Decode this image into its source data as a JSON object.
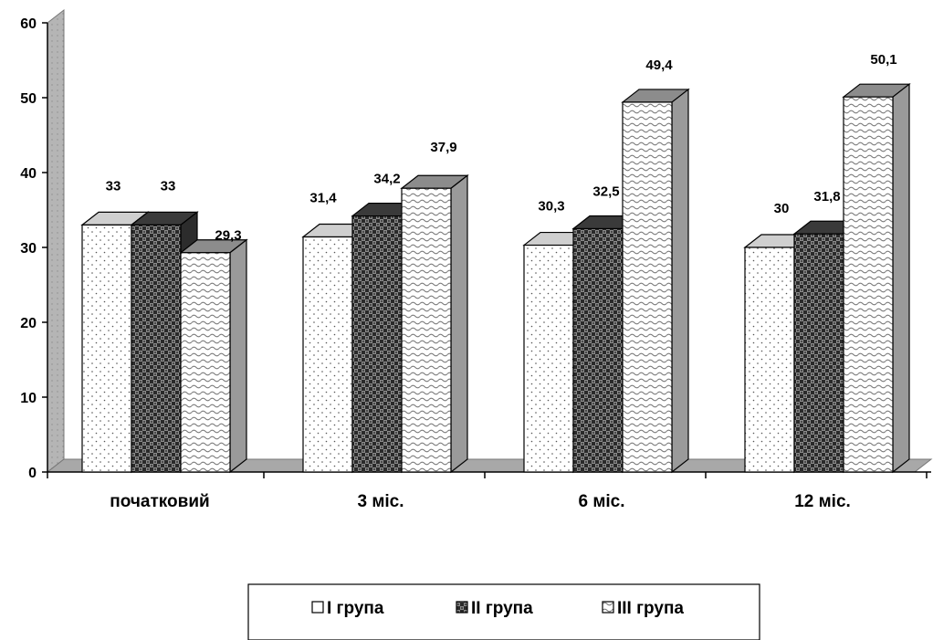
{
  "chart_data": {
    "type": "bar",
    "title": "",
    "xlabel": "",
    "ylabel": "",
    "ylim": [
      0,
      60
    ],
    "yticks": [
      "0",
      "10",
      "20",
      "30",
      "40",
      "50",
      "60"
    ],
    "categories": [
      "початковий",
      "3 міс.",
      "6 міс.",
      "12 міс."
    ],
    "series": [
      {
        "name": "I група",
        "values": [
          33,
          31.4,
          30.3,
          30
        ],
        "labels": [
          "33",
          "31,4",
          "30,3",
          "30"
        ],
        "pattern": "dots"
      },
      {
        "name": "II група",
        "values": [
          33,
          34.2,
          32.5,
          31.8
        ],
        "labels": [
          "33",
          "34,2",
          "32,5",
          "31,8"
        ],
        "pattern": "checker"
      },
      {
        "name": "III група",
        "values": [
          29.3,
          37.9,
          49.4,
          50.1
        ],
        "labels": [
          "29,3",
          "37,9",
          "49,4",
          "50,1"
        ],
        "pattern": "waves"
      }
    ],
    "grid": false,
    "legend_position": "bottom",
    "style": "3d"
  }
}
